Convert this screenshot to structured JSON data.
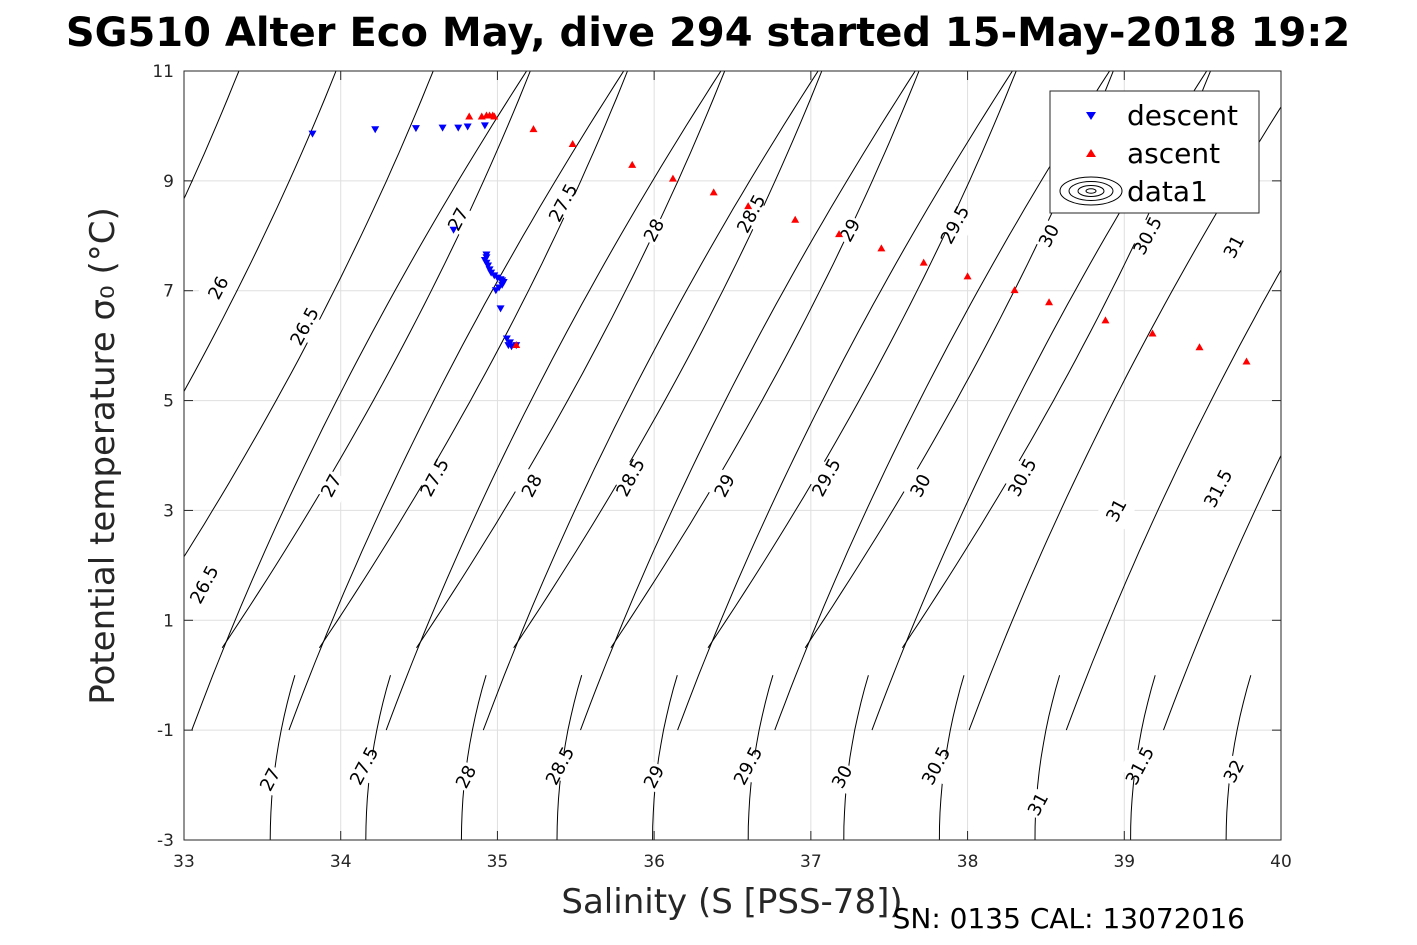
{
  "figure": {
    "title": "SG510 Alter Eco May, dive 294 started 15-May-2018 19:2",
    "footer": "SN: 0135  CAL: 13072016"
  },
  "chart_data": {
    "type": "scatter",
    "title": "SG510 Alter Eco May, dive 294 started 15-May-2018 19:2",
    "xlabel": "Salinity (S [PSS-78])",
    "ylabel": "Potential temperature σ₀ (°C)",
    "xlim": [
      33,
      40
    ],
    "ylim": [
      -3,
      11
    ],
    "xticks": [
      33,
      34,
      35,
      36,
      37,
      38,
      39,
      40
    ],
    "yticks": [
      -3,
      -1,
      1,
      3,
      5,
      7,
      9,
      11
    ],
    "grid": true,
    "legend_position": "top-right",
    "series": [
      {
        "name": "descent",
        "marker": "triangle-down",
        "color": "#0000ff",
        "points": [
          [
            33.82,
            9.85
          ],
          [
            34.22,
            9.93
          ],
          [
            34.48,
            9.95
          ],
          [
            34.65,
            9.96
          ],
          [
            34.75,
            9.96
          ],
          [
            34.81,
            9.98
          ],
          [
            34.92,
            10.0
          ],
          [
            34.72,
            8.1
          ],
          [
            34.93,
            7.65
          ],
          [
            34.93,
            7.6
          ],
          [
            34.92,
            7.55
          ],
          [
            34.93,
            7.5
          ],
          [
            34.94,
            7.45
          ],
          [
            34.95,
            7.38
          ],
          [
            34.96,
            7.32
          ],
          [
            34.98,
            7.27
          ],
          [
            35.0,
            7.23
          ],
          [
            35.02,
            7.2
          ],
          [
            35.03,
            7.18
          ],
          [
            35.04,
            7.15
          ],
          [
            35.03,
            7.1
          ],
          [
            35.01,
            7.05
          ],
          [
            34.99,
            7.0
          ],
          [
            35.02,
            6.67
          ],
          [
            35.06,
            6.12
          ],
          [
            35.08,
            6.05
          ],
          [
            35.07,
            6.0
          ],
          [
            35.09,
            5.98
          ],
          [
            35.12,
            6.0
          ]
        ]
      },
      {
        "name": "ascent",
        "marker": "triangle-up",
        "color": "#ff0000",
        "points": [
          [
            34.82,
            10.18
          ],
          [
            34.9,
            10.18
          ],
          [
            34.93,
            10.2
          ],
          [
            34.95,
            10.2
          ],
          [
            34.97,
            10.2
          ],
          [
            34.98,
            10.18
          ],
          [
            35.23,
            9.95
          ],
          [
            35.48,
            9.68
          ],
          [
            35.86,
            9.3
          ],
          [
            36.12,
            9.05
          ],
          [
            36.38,
            8.8
          ],
          [
            36.6,
            8.55
          ],
          [
            36.9,
            8.3
          ],
          [
            37.18,
            8.04
          ],
          [
            37.45,
            7.78
          ],
          [
            37.72,
            7.52
          ],
          [
            38.0,
            7.27
          ],
          [
            38.3,
            7.02
          ],
          [
            38.52,
            6.8
          ],
          [
            38.88,
            6.47
          ],
          [
            39.18,
            6.23
          ],
          [
            39.48,
            5.98
          ],
          [
            39.78,
            5.72
          ],
          [
            35.12,
            6.02
          ]
        ]
      },
      {
        "name": "data1",
        "marker": "contour"
      }
    ],
    "contours": {
      "upper_set": [
        {
          "level": 26,
          "label_at": [
            33.22,
            7.05
          ]
        },
        {
          "level": 26.5,
          "label_at": [
            33.77,
            6.35
          ]
        },
        {
          "level": 27,
          "label_at": [
            34.75,
            8.3
          ]
        },
        {
          "level": 27.5,
          "label_at": [
            35.42,
            8.6
          ]
        },
        {
          "level": 28,
          "label_at": [
            36.0,
            8.1
          ]
        },
        {
          "level": 28.5,
          "label_at": [
            36.62,
            8.4
          ]
        },
        {
          "level": 29,
          "label_at": [
            37.25,
            8.1
          ]
        },
        {
          "level": 29.5,
          "label_at": [
            37.92,
            8.2
          ]
        },
        {
          "level": 30,
          "label_at": [
            38.52,
            8.0
          ]
        },
        {
          "level": 30.5,
          "label_at": [
            39.15,
            8.0
          ]
        },
        {
          "level": 31,
          "label_at": [
            39.7,
            7.8
          ]
        }
      ],
      "middle_set": [
        {
          "level": 26.5,
          "label_at": [
            33.13,
            1.65
          ]
        },
        {
          "level": 27,
          "label_at": [
            33.94,
            3.45
          ]
        },
        {
          "level": 27.5,
          "label_at": [
            34.6,
            3.6
          ]
        },
        {
          "level": 28,
          "label_at": [
            35.22,
            3.45
          ]
        },
        {
          "level": 28.5,
          "label_at": [
            35.85,
            3.6
          ]
        },
        {
          "level": 29,
          "label_at": [
            36.45,
            3.45
          ]
        },
        {
          "level": 29.5,
          "label_at": [
            37.1,
            3.6
          ]
        },
        {
          "level": 30,
          "label_at": [
            37.7,
            3.45
          ]
        },
        {
          "level": 30.5,
          "label_at": [
            38.35,
            3.6
          ]
        },
        {
          "level": 31,
          "label_at": [
            38.95,
            3.0
          ]
        },
        {
          "level": 31.5,
          "label_at": [
            39.6,
            3.4
          ]
        }
      ],
      "lower_set": [
        {
          "level": 27,
          "label_at": [
            33.55,
            -1.9
          ]
        },
        {
          "level": 27.5,
          "label_at": [
            34.15,
            -1.65
          ]
        },
        {
          "level": 28,
          "label_at": [
            34.8,
            -1.85
          ]
        },
        {
          "level": 28.5,
          "label_at": [
            35.4,
            -1.65
          ]
        },
        {
          "level": 29,
          "label_at": [
            36.0,
            -1.85
          ]
        },
        {
          "level": 29.5,
          "label_at": [
            36.6,
            -1.65
          ]
        },
        {
          "level": 30,
          "label_at": [
            37.2,
            -1.85
          ]
        },
        {
          "level": 30.5,
          "label_at": [
            37.8,
            -1.65
          ]
        },
        {
          "level": 31,
          "label_at": [
            38.45,
            -2.35
          ]
        },
        {
          "level": 31.5,
          "label_at": [
            39.1,
            -1.65
          ]
        },
        {
          "level": 32,
          "label_at": [
            39.7,
            -1.75
          ]
        }
      ]
    }
  }
}
